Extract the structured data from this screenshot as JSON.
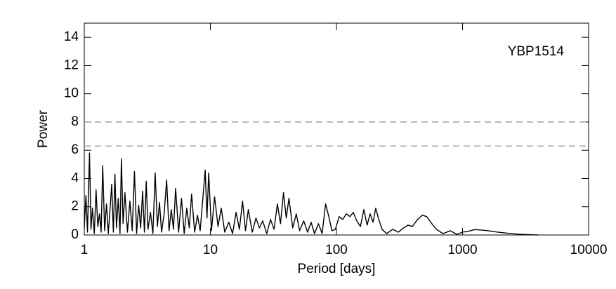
{
  "chart_data": {
    "type": "line",
    "annotation": "YBP1514",
    "xlabel": "Period [days]",
    "ylabel": "Power",
    "xscale": "log",
    "xlim": [
      1,
      10000
    ],
    "xticks": [
      1,
      10,
      100,
      1000,
      10000
    ],
    "ylim": [
      0,
      15
    ],
    "yticks": [
      0,
      2,
      4,
      6,
      8,
      10,
      12,
      14
    ],
    "reference_lines": [
      8,
      6.3
    ],
    "reference_color": "#999999",
    "grid": false,
    "series": [
      {
        "color": "#000000",
        "x": [
          1.0,
          1.03,
          1.06,
          1.1,
          1.13,
          1.16,
          1.2,
          1.24,
          1.28,
          1.32,
          1.36,
          1.4,
          1.45,
          1.5,
          1.55,
          1.6,
          1.65,
          1.7,
          1.75,
          1.8,
          1.86,
          1.92,
          1.97,
          2.03,
          2.1,
          2.2,
          2.3,
          2.4,
          2.5,
          2.6,
          2.7,
          2.8,
          2.9,
          3.0,
          3.1,
          3.2,
          3.35,
          3.5,
          3.65,
          3.8,
          3.95,
          4.1,
          4.3,
          4.5,
          4.7,
          4.9,
          5.1,
          5.3,
          5.6,
          5.9,
          6.2,
          6.5,
          6.8,
          7.1,
          7.5,
          7.9,
          8.3,
          8.7,
          9.1,
          9.4,
          9.7,
          10.2,
          10.8,
          11.5,
          12.2,
          13,
          14,
          15,
          16,
          17,
          18,
          19,
          20,
          21.5,
          23,
          24.5,
          26,
          28,
          30,
          32,
          34,
          36,
          38,
          40,
          42,
          45,
          48,
          51,
          55,
          59,
          63,
          67,
          72,
          77,
          82,
          87,
          92,
          98,
          105,
          112,
          120,
          128,
          136,
          145,
          155,
          165,
          175,
          185,
          195,
          205,
          215,
          230,
          250,
          280,
          310,
          340,
          370,
          400,
          440,
          480,
          520,
          560,
          620,
          700,
          800,
          900,
          1000,
          1100,
          1250,
          1400,
          1600,
          1900,
          2300,
          2800,
          3400,
          4000
        ],
        "values": [
          0.5,
          2.8,
          0.2,
          5.8,
          0.4,
          1.9,
          0.1,
          3.2,
          0.6,
          1.5,
          0.2,
          4.9,
          0.3,
          2.2,
          0.1,
          1.8,
          3.6,
          0.2,
          4.3,
          0.5,
          2.6,
          0.1,
          5.4,
          0.8,
          3.0,
          0.2,
          2.4,
          0.3,
          4.5,
          0.1,
          2.1,
          0.5,
          3.1,
          0.2,
          3.8,
          0.4,
          1.6,
          0.1,
          4.4,
          0.6,
          2.3,
          0.2,
          1.5,
          3.9,
          0.3,
          1.8,
          0.4,
          3.3,
          0.2,
          2.6,
          0.1,
          1.9,
          0.5,
          2.9,
          0.2,
          1.4,
          0.3,
          2.5,
          4.6,
          1.2,
          4.4,
          0.3,
          2.7,
          0.6,
          1.9,
          0.2,
          0.9,
          0.1,
          1.6,
          0.4,
          2.4,
          0.3,
          1.8,
          0.2,
          1.2,
          0.5,
          1.0,
          0.1,
          1.1,
          0.4,
          2.2,
          0.8,
          3.0,
          1.2,
          2.6,
          0.5,
          1.5,
          0.3,
          1.0,
          0.2,
          0.9,
          0.1,
          0.8,
          0.1,
          2.2,
          1.3,
          0.3,
          0.4,
          1.3,
          1.1,
          1.5,
          1.3,
          1.6,
          1.0,
          0.6,
          1.8,
          0.7,
          1.5,
          0.9,
          1.9,
          1.2,
          0.4,
          0.1,
          0.4,
          0.2,
          0.5,
          0.7,
          0.6,
          1.1,
          1.4,
          1.3,
          0.9,
          0.4,
          0.1,
          0.3,
          0.05,
          0.2,
          0.25,
          0.38,
          0.35,
          0.3,
          0.2,
          0.12,
          0.05,
          0.02,
          0
        ]
      }
    ]
  }
}
